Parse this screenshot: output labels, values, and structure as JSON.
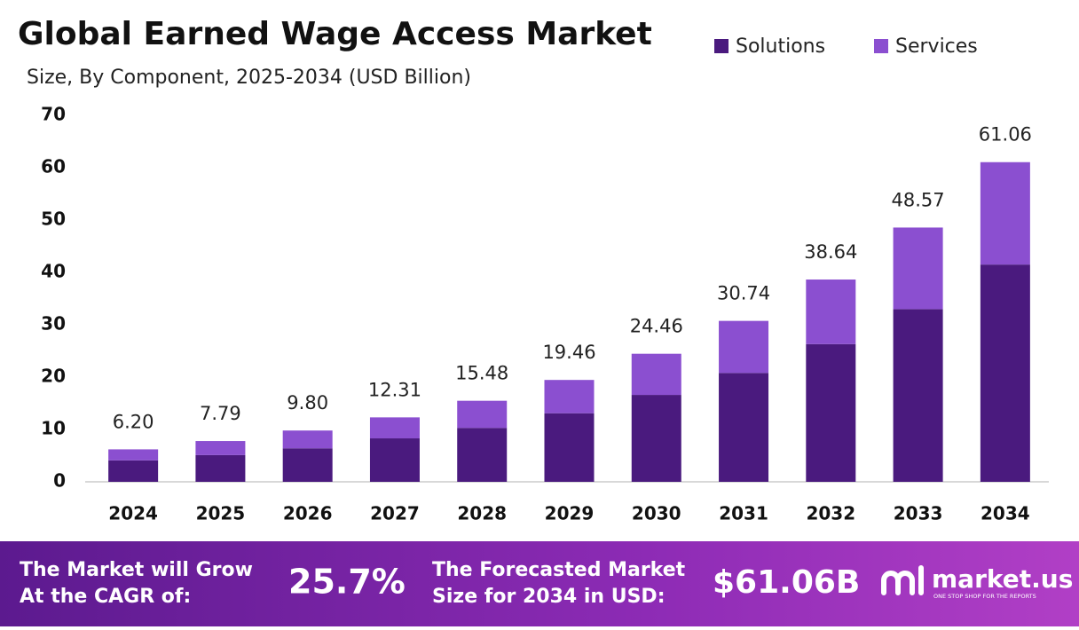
{
  "chart_data": {
    "type": "stacked_bar",
    "title": "Global Earned Wage Access Market",
    "subtitle": "Size, By Component, 2025-2034 (USD Billion)",
    "categories": [
      "2024",
      "2025",
      "2026",
      "2027",
      "2028",
      "2029",
      "2030",
      "2031",
      "2032",
      "2033",
      "2034"
    ],
    "series": [
      {
        "name": "Solutions",
        "color": "#4a1a7e",
        "values": [
          4.1,
          5.1,
          6.4,
          8.3,
          10.3,
          13.1,
          16.6,
          20.8,
          26.3,
          33.0,
          41.5
        ]
      },
      {
        "name": "Services",
        "color": "#8b4fd0",
        "values": [
          2.1,
          2.69,
          3.4,
          4.01,
          5.18,
          6.36,
          7.86,
          9.94,
          12.34,
          15.57,
          19.56
        ]
      }
    ],
    "totals": [
      "6.20",
      "7.79",
      "9.80",
      "12.31",
      "15.48",
      "19.46",
      "24.46",
      "30.74",
      "38.64",
      "48.57",
      "61.06"
    ],
    "ylim": [
      0,
      70
    ],
    "yticks": [
      0,
      10,
      20,
      30,
      40,
      50,
      60,
      70
    ],
    "grid": false,
    "legend": "top-right"
  },
  "footer": {
    "cagr_label": [
      "The Market will Grow",
      "At the CAGR of:"
    ],
    "cagr": "25.7%",
    "size_label": [
      "The Forecasted Market",
      "Size for 2034 in USD:"
    ],
    "size": "$61.06B",
    "brand": "market.us",
    "tagline": "ONE STOP SHOP FOR THE REPORTS"
  }
}
